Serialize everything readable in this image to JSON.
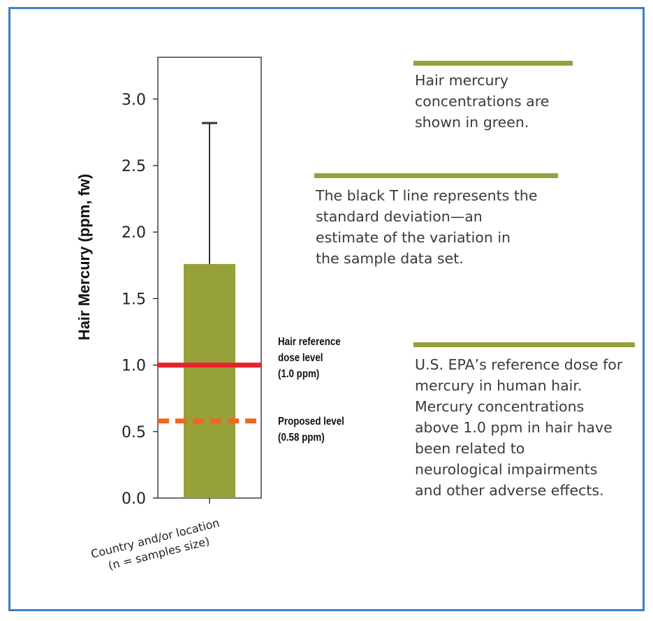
{
  "chart_data": {
    "type": "bar",
    "ylabel": "Hair Mercury (ppm, fw)",
    "xlabel": "Country and/or location\n(n = samples size)",
    "ylim": [
      0,
      3.3
    ],
    "yticks": [
      "0.0",
      "0.5",
      "1.0",
      "1.5",
      "2.0",
      "2.5",
      "3.0"
    ],
    "categories": [
      ""
    ],
    "values": [
      1.76
    ],
    "error_upper": [
      2.82
    ],
    "bar_color": "#97a13a",
    "error_color": "#333333",
    "reference_lines": [
      {
        "value": 1.0,
        "label": "Hair reference\ndose level\n(1.0 ppm)",
        "style": "solid",
        "color": "#e8212d"
      },
      {
        "value": 0.58,
        "label": "Proposed level\n(0.58 ppm)",
        "style": "dashed",
        "color": "#f26522"
      }
    ]
  },
  "notes": [
    {
      "text": "Hair mercury\nconcentrations are\nshown in green."
    },
    {
      "text": "The black T line represents the\nstandard deviation—an\nestimate of the variation in\nthe sample data set."
    },
    {
      "text": "U.S. EPA’s reference dose for\nmercury in human hair.\nMercury concentrations\nabove 1.0 ppm in hair have\nbeen related to\nneurological impairments\nand other adverse effects."
    }
  ],
  "colors": {
    "frame": "#3b7fc4",
    "accent": "#97a13a",
    "text": "#3a3a3a"
  }
}
